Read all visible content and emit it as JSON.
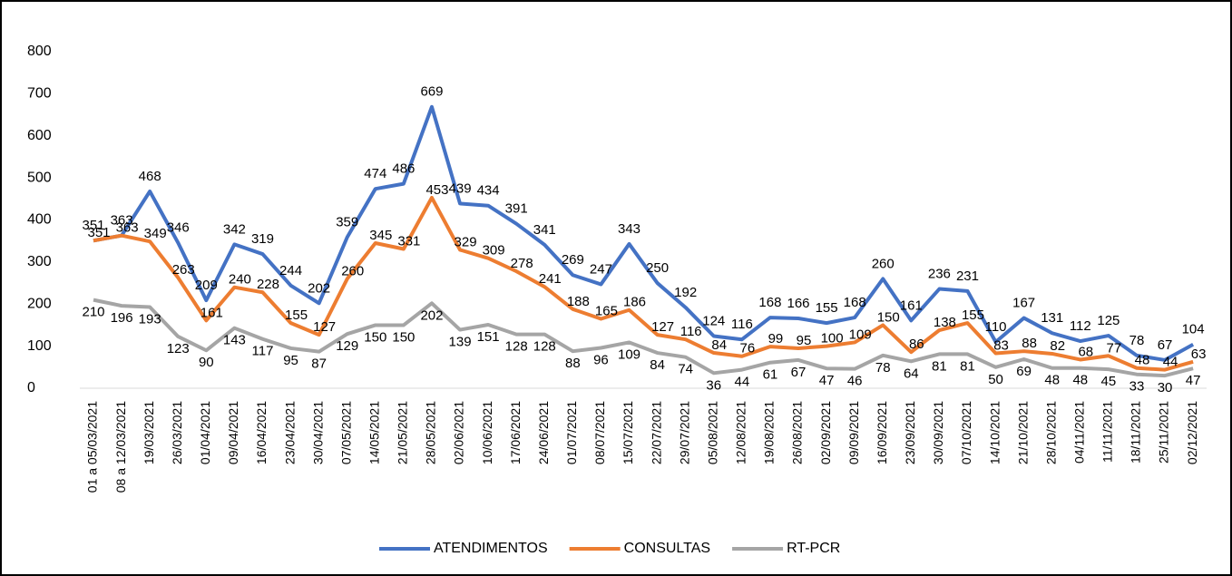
{
  "chart_data": {
    "type": "line",
    "categories": [
      "01 a 05/03/2021",
      "08 a 12/03/2021",
      "19/03/2021",
      "26/03/2021",
      "01/04/2021",
      "09/04/2021",
      "16/04/2021",
      "23/04/2021",
      "30/04/2021",
      "07/05/2021",
      "14/05/2021",
      "21/05/2021",
      "28/05/2021",
      "02/06/2021",
      "10/06/2021",
      "17/06/2021",
      "24/06/2021",
      "01/07/2021",
      "08/07/2021",
      "15/07/2021",
      "22/07/2021",
      "29/07/2021",
      "05/08/2021",
      "12/08/2021",
      "19/08/2021",
      "26/08/2021",
      "02/09/2021",
      "09/09/2021",
      "16/09/2021",
      "23/09/2021",
      "30/09/2021",
      "07/10/2021",
      "14/10/2021",
      "21/10/2021",
      "28/10/2021",
      "04/11/2021",
      "11/11/2021",
      "18/11/2021",
      "25/11/2021",
      "02/12/2021"
    ],
    "series": [
      {
        "name": "ATENDIMENTOS",
        "color": "#4472c4",
        "values": [
          351,
          363,
          468,
          346,
          209,
          342,
          319,
          244,
          202,
          359,
          474,
          486,
          669,
          439,
          434,
          391,
          341,
          269,
          247,
          343,
          250,
          192,
          124,
          116,
          168,
          166,
          155,
          168,
          260,
          161,
          236,
          231,
          110,
          167,
          131,
          112,
          125,
          78,
          67,
          104
        ]
      },
      {
        "name": "CONSULTAS",
        "color": "#ed7d31",
        "values": [
          351,
          363,
          349,
          263,
          161,
          240,
          228,
          155,
          127,
          260,
          345,
          331,
          453,
          329,
          309,
          278,
          241,
          188,
          165,
          186,
          127,
          116,
          84,
          76,
          99,
          95,
          100,
          109,
          150,
          86,
          138,
          155,
          83,
          88,
          82,
          68,
          77,
          48,
          44,
          63
        ]
      },
      {
        "name": "RT-PCR",
        "color": "#a5a5a5",
        "values": [
          210,
          196,
          193,
          123,
          90,
          143,
          117,
          95,
          87,
          129,
          150,
          150,
          202,
          139,
          151,
          128,
          128,
          88,
          96,
          109,
          84,
          74,
          36,
          44,
          61,
          67,
          47,
          46,
          78,
          64,
          81,
          81,
          50,
          69,
          48,
          48,
          45,
          33,
          30,
          47
        ]
      }
    ],
    "ylim": [
      0,
      800
    ],
    "yticks": [
      0,
      100,
      200,
      300,
      400,
      500,
      600,
      700,
      800
    ],
    "legend": "bottom"
  }
}
